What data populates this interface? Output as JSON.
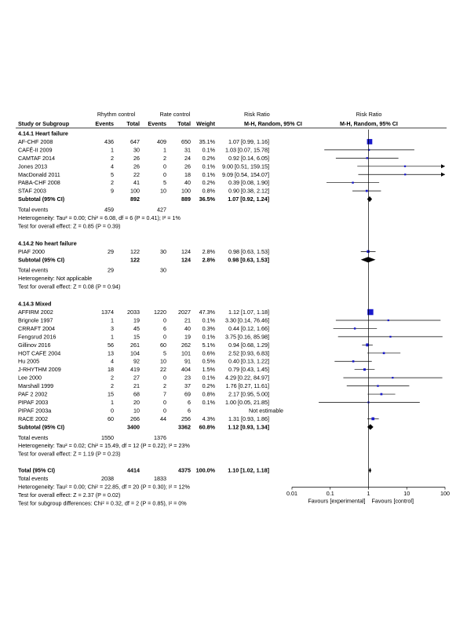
{
  "header": {
    "rhythm_control": "Rhythm control",
    "rate_control": "Rate control",
    "risk_ratio": "Risk Ratio",
    "risk_ratio_plot": "Risk Ratio",
    "study": "Study or Subgroup",
    "events1": "Events",
    "total1": "Total",
    "events2": "Events",
    "total2": "Total",
    "weight": "Weight",
    "method": "M-H, Random, 95% CI",
    "method_plot": "M-H, Random, 95% CI"
  },
  "subgroups": [
    {
      "label": "4.14.1 Heart failure",
      "studies": [
        {
          "name": "AF-CHF 2008",
          "e1": "436",
          "n1": "647",
          "e2": "409",
          "n2": "650",
          "weight": "35.1%",
          "ci_text": "1.07 [0.99, 1.16]",
          "rr": 1.07,
          "lo": 0.99,
          "hi": 1.16,
          "w": 35.1
        },
        {
          "name": "CAFÉ-II 2009",
          "e1": "1",
          "n1": "30",
          "e2": "1",
          "n2": "31",
          "weight": "0.1%",
          "ci_text": "1.03 [0.07, 15.78]",
          "rr": 1.03,
          "lo": 0.07,
          "hi": 15.78,
          "w": 0.1
        },
        {
          "name": "CAMTAF 2014",
          "e1": "2",
          "n1": "26",
          "e2": "2",
          "n2": "24",
          "weight": "0.2%",
          "ci_text": "0.92 [0.14, 6.05]",
          "rr": 0.92,
          "lo": 0.14,
          "hi": 6.05,
          "w": 0.2
        },
        {
          "name": "Jones 2013",
          "e1": "4",
          "n1": "26",
          "e2": "0",
          "n2": "26",
          "weight": "0.1%",
          "ci_text": "9.00 [0.51, 159.15]",
          "rr": 9.0,
          "lo": 0.51,
          "hi": 159.15,
          "w": 0.1
        },
        {
          "name": "MacDonald 2011",
          "e1": "5",
          "n1": "22",
          "e2": "0",
          "n2": "18",
          "weight": "0.1%",
          "ci_text": "9.09 [0.54, 154.07]",
          "rr": 9.09,
          "lo": 0.54,
          "hi": 154.07,
          "w": 0.1
        },
        {
          "name": "PABA-CHF 2008",
          "e1": "2",
          "n1": "41",
          "e2": "5",
          "n2": "40",
          "weight": "0.2%",
          "ci_text": "0.39 [0.08, 1.90]",
          "rr": 0.39,
          "lo": 0.08,
          "hi": 1.9,
          "w": 0.2
        },
        {
          "name": "STAF 2003",
          "e1": "9",
          "n1": "100",
          "e2": "10",
          "n2": "100",
          "weight": "0.8%",
          "ci_text": "0.90 [0.38, 2.12]",
          "rr": 0.9,
          "lo": 0.38,
          "hi": 2.12,
          "w": 0.8
        }
      ],
      "subtotal": {
        "label": "Subtotal (95% CI)",
        "n1": "892",
        "n2": "889",
        "weight": "36.5%",
        "ci_text": "1.07 [0.92, 1.24]",
        "rr": 1.07,
        "lo": 0.92,
        "hi": 1.24
      },
      "total_events": {
        "label": "Total events",
        "e1": "459",
        "e2": "427"
      },
      "heterogeneity": "Heterogeneity: Tau² = 0.00; Chi² = 6.08, df = 6 (P = 0.41); I² = 1%",
      "overall": "Test for overall effect: Z = 0.85 (P = 0.39)"
    },
    {
      "label": "4.14.2 No heart failure",
      "studies": [
        {
          "name": "PIAF 2000",
          "e1": "29",
          "n1": "122",
          "e2": "30",
          "n2": "124",
          "weight": "2.8%",
          "ci_text": "0.98 [0.63, 1.53]",
          "rr": 0.98,
          "lo": 0.63,
          "hi": 1.53,
          "w": 2.8
        }
      ],
      "subtotal": {
        "label": "Subtotal (95% CI)",
        "n1": "122",
        "n2": "124",
        "weight": "2.8%",
        "ci_text": "0.98 [0.63, 1.53]",
        "rr": 0.98,
        "lo": 0.63,
        "hi": 1.53
      },
      "total_events": {
        "label": "Total events",
        "e1": "29",
        "e2": "30"
      },
      "heterogeneity": "Heterogeneity: Not applicable",
      "overall": "Test for overall effect: Z = 0.08 (P = 0.94)"
    },
    {
      "label": "4.14.3 Mixed",
      "studies": [
        {
          "name": "AFFIRM 2002",
          "e1": "1374",
          "n1": "2033",
          "e2": "1220",
          "n2": "2027",
          "weight": "47.3%",
          "ci_text": "1.12 [1.07, 1.18]",
          "rr": 1.12,
          "lo": 1.07,
          "hi": 1.18,
          "w": 47.3
        },
        {
          "name": "Brignole 1997",
          "e1": "1",
          "n1": "19",
          "e2": "0",
          "n2": "21",
          "weight": "0.1%",
          "ci_text": "3.30 [0.14, 76.46]",
          "rr": 3.3,
          "lo": 0.14,
          "hi": 76.46,
          "w": 0.1
        },
        {
          "name": "CRRAFT 2004",
          "e1": "3",
          "n1": "45",
          "e2": "6",
          "n2": "40",
          "weight": "0.3%",
          "ci_text": "0.44 [0.12, 1.66]",
          "rr": 0.44,
          "lo": 0.12,
          "hi": 1.66,
          "w": 0.3
        },
        {
          "name": "Fengsrud 2016",
          "e1": "1",
          "n1": "15",
          "e2": "0",
          "n2": "19",
          "weight": "0.1%",
          "ci_text": "3.75 [0.16, 85.98]",
          "rr": 3.75,
          "lo": 0.16,
          "hi": 85.98,
          "w": 0.1
        },
        {
          "name": "Gillinov 2016",
          "e1": "56",
          "n1": "261",
          "e2": "60",
          "n2": "262",
          "weight": "5.1%",
          "ci_text": "0.94 [0.68, 1.29]",
          "rr": 0.94,
          "lo": 0.68,
          "hi": 1.29,
          "w": 5.1
        },
        {
          "name": "HOT CAFE 2004",
          "e1": "13",
          "n1": "104",
          "e2": "5",
          "n2": "101",
          "weight": "0.6%",
          "ci_text": "2.52 [0.93, 6.83]",
          "rr": 2.52,
          "lo": 0.93,
          "hi": 6.83,
          "w": 0.6
        },
        {
          "name": "Hu 2005",
          "e1": "4",
          "n1": "92",
          "e2": "10",
          "n2": "91",
          "weight": "0.5%",
          "ci_text": "0.40 [0.13, 1.22]",
          "rr": 0.4,
          "lo": 0.13,
          "hi": 1.22,
          "w": 0.5
        },
        {
          "name": "J-RHYTHM 2009",
          "e1": "18",
          "n1": "419",
          "e2": "22",
          "n2": "404",
          "weight": "1.5%",
          "ci_text": "0.79 [0.43, 1.45]",
          "rr": 0.79,
          "lo": 0.43,
          "hi": 1.45,
          "w": 1.5
        },
        {
          "name": "Lee 2000",
          "e1": "2",
          "n1": "27",
          "e2": "0",
          "n2": "23",
          "weight": "0.1%",
          "ci_text": "4.29 [0.22, 84.97]",
          "rr": 4.29,
          "lo": 0.22,
          "hi": 84.97,
          "w": 0.1
        },
        {
          "name": "Marshall 1999",
          "e1": "2",
          "n1": "21",
          "e2": "2",
          "n2": "37",
          "weight": "0.2%",
          "ci_text": "1.76 [0.27, 11.61]",
          "rr": 1.76,
          "lo": 0.27,
          "hi": 11.61,
          "w": 0.2
        },
        {
          "name": "PAF 2 2002",
          "e1": "15",
          "n1": "68",
          "e2": "7",
          "n2": "69",
          "weight": "0.8%",
          "ci_text": "2.17 [0.95, 5.00]",
          "rr": 2.17,
          "lo": 0.95,
          "hi": 5.0,
          "w": 0.8
        },
        {
          "name": "PIPAF 2003",
          "e1": "1",
          "n1": "20",
          "e2": "0",
          "n2": "6",
          "weight": "0.1%",
          "ci_text": "1.00 [0.05, 21.85]",
          "rr": 1.0,
          "lo": 0.05,
          "hi": 21.85,
          "w": 0.1
        },
        {
          "name": "PIPAF 2003a",
          "e1": "0",
          "n1": "10",
          "e2": "0",
          "n2": "6",
          "weight": "",
          "ci_text": "Not estimable",
          "rr": null,
          "lo": null,
          "hi": null,
          "w": 0
        },
        {
          "name": "RACE 2002",
          "e1": "60",
          "n1": "266",
          "e2": "44",
          "n2": "256",
          "weight": "4.3%",
          "ci_text": "1.31 [0.93, 1.86]",
          "rr": 1.31,
          "lo": 0.93,
          "hi": 1.86,
          "w": 4.3
        }
      ],
      "subtotal": {
        "label": "Subtotal (95% CI)",
        "n1": "3400",
        "n2": "3362",
        "weight": "60.8%",
        "ci_text": "1.12 [0.93, 1.34]",
        "rr": 1.12,
        "lo": 0.93,
        "hi": 1.34
      },
      "total_events": {
        "label": "Total events",
        "e1": "1550",
        "e2": "1376"
      },
      "heterogeneity": "Heterogeneity: Tau² = 0.02; Chi² = 15.49, df = 12 (P = 0.22); I² = 23%",
      "overall": "Test for overall effect: Z = 1.19 (P = 0.23)"
    }
  ],
  "total": {
    "label": "Total (95% CI)",
    "n1": "4414",
    "n2": "4375",
    "weight": "100.0%",
    "ci_text": "1.10 [1.02, 1.18]",
    "rr": 1.1,
    "lo": 1.02,
    "hi": 1.18,
    "total_events": {
      "label": "Total events",
      "e1": "2038",
      "e2": "1833"
    },
    "heterogeneity": "Heterogeneity: Tau² = 0.00; Chi² = 22.85, df = 20 (P = 0.30); I² = 12%",
    "overall": "Test for overall effect: Z = 2.37 (P = 0.02)",
    "subgroup_diff": "Test for subgroup differences: Chi² = 0.32, df = 2 (P = 0.85), I² = 0%"
  },
  "axis": {
    "ticks": [
      {
        "value": 0.01,
        "label": "0.01"
      },
      {
        "value": 0.1,
        "label": "0.1"
      },
      {
        "value": 1,
        "label": "1"
      },
      {
        "value": 10,
        "label": "10"
      },
      {
        "value": 100,
        "label": "100"
      }
    ],
    "favours_left": "Favours [experimental]",
    "favours_right": "Favours [control]"
  },
  "chart_data": {
    "type": "scatter",
    "x_scale": "log",
    "xlim": [
      0.01,
      100
    ],
    "x_ticks": [
      0.01,
      0.1,
      1,
      10,
      100
    ],
    "reference_line": 1,
    "colors": {
      "study_marker": "#1a1acc",
      "ci_line": "#000000",
      "diamond": "#000000"
    },
    "xlabel_left": "Favours [experimental]",
    "xlabel_right": "Favours [control]"
  }
}
